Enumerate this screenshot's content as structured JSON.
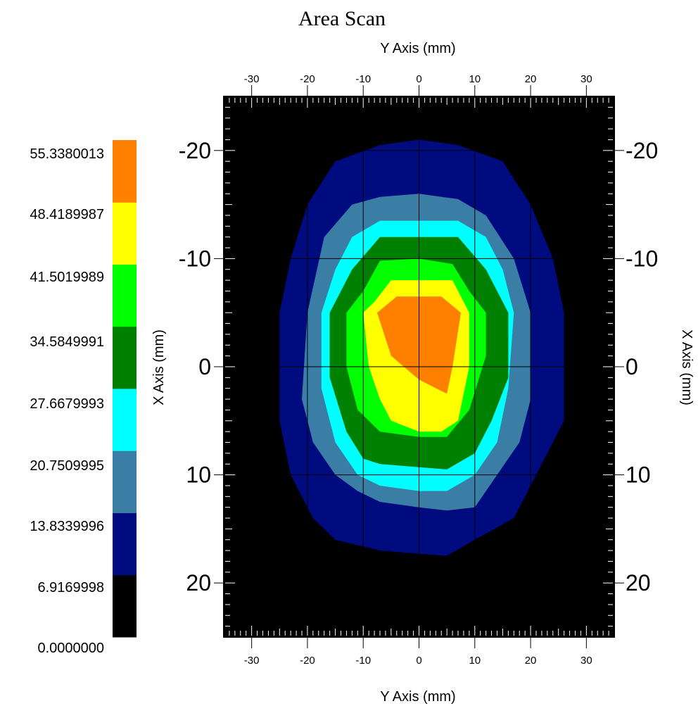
{
  "chart_data": {
    "type": "heatmap",
    "title": "Area Scan",
    "x_axis_label": "Y Axis (mm)",
    "y_axis_label": "X Axis (mm)",
    "x_range": [
      -35,
      35
    ],
    "y_range": [
      -25,
      25
    ],
    "y_reversed": true,
    "x_ticks": [
      -30,
      -20,
      -10,
      0,
      10,
      20,
      30
    ],
    "y_ticks": [
      -20,
      -10,
      0,
      10,
      20
    ],
    "x_tick_labels": [
      "-30",
      "-20",
      "-10",
      "0",
      "10",
      "20",
      "30"
    ],
    "y_tick_labels": [
      "-20",
      "-10",
      "0",
      "10",
      "20"
    ],
    "grid": true,
    "background_color": "#000000",
    "legend": {
      "placement": "left",
      "levels": [
        "0.0000000",
        "6.9169998",
        "13.8339996",
        "20.7509995",
        "27.6679993",
        "34.5849991",
        "41.5019989",
        "48.4189987",
        "55.3380013"
      ],
      "colors": [
        "#000000",
        "#000b80",
        "#3a7ea6",
        "#00ffff",
        "#008000",
        "#00ff00",
        "#ffff00",
        "#ff8000"
      ]
    },
    "contours": [
      {
        "level": "6.9169998",
        "color": "#000b80",
        "points": [
          [
            0,
            -21
          ],
          [
            -7,
            -20.5
          ],
          [
            -15,
            -19
          ],
          [
            -20,
            -15
          ],
          [
            -23,
            -10
          ],
          [
            -25,
            -5
          ],
          [
            -25,
            5
          ],
          [
            -23,
            10
          ],
          [
            -19,
            14
          ],
          [
            -15,
            16
          ],
          [
            -7,
            17
          ],
          [
            0,
            17.3
          ],
          [
            5,
            17.5
          ],
          [
            10,
            16
          ],
          [
            17,
            14
          ],
          [
            22,
            9
          ],
          [
            26,
            5
          ],
          [
            26,
            -5
          ],
          [
            24,
            -10
          ],
          [
            20,
            -15
          ],
          [
            15,
            -19
          ],
          [
            7,
            -20.5
          ]
        ]
      },
      {
        "level": "13.8339996",
        "color": "#3a7ea6",
        "points": [
          [
            0,
            -16
          ],
          [
            -7,
            -15.7
          ],
          [
            -12,
            -15
          ],
          [
            -17,
            -12
          ],
          [
            -20,
            -5
          ],
          [
            -21,
            3
          ],
          [
            -19,
            7
          ],
          [
            -15,
            10
          ],
          [
            -11,
            11.5
          ],
          [
            -7,
            12.5
          ],
          [
            0,
            13
          ],
          [
            5,
            13.3
          ],
          [
            10,
            13
          ],
          [
            14,
            10
          ],
          [
            18,
            7
          ],
          [
            20,
            3
          ],
          [
            20,
            -5
          ],
          [
            17,
            -10
          ],
          [
            12,
            -14
          ],
          [
            7,
            -15.5
          ]
        ]
      },
      {
        "level": "20.7509995",
        "color": "#00ffff",
        "points": [
          [
            0,
            -13.5
          ],
          [
            -7,
            -13.5
          ],
          [
            -12,
            -12
          ],
          [
            -15,
            -9
          ],
          [
            -17.5,
            -5
          ],
          [
            -17.5,
            2
          ],
          [
            -15,
            7
          ],
          [
            -11,
            10
          ],
          [
            -7,
            11
          ],
          [
            0,
            11.5
          ],
          [
            5,
            11.5
          ],
          [
            10,
            10
          ],
          [
            14,
            7
          ],
          [
            16,
            2
          ],
          [
            17,
            -5
          ],
          [
            15,
            -9
          ],
          [
            12,
            -12
          ],
          [
            7,
            -13.5
          ]
        ]
      },
      {
        "level": "27.6679993",
        "color": "#008000",
        "points": [
          [
            0,
            -12
          ],
          [
            -7,
            -12
          ],
          [
            -12,
            -9
          ],
          [
            -16,
            -5
          ],
          [
            -16,
            1
          ],
          [
            -13,
            6
          ],
          [
            -10,
            8.5
          ],
          [
            -7,
            9
          ],
          [
            0,
            9.3
          ],
          [
            5,
            9.5
          ],
          [
            10,
            8
          ],
          [
            13,
            5
          ],
          [
            16,
            1
          ],
          [
            16,
            -5
          ],
          [
            12,
            -9
          ],
          [
            7,
            -12
          ]
        ]
      },
      {
        "level": "34.5849991",
        "color": "#00ff00",
        "points": [
          [
            0,
            -10
          ],
          [
            -7,
            -9.8
          ],
          [
            -10,
            -7
          ],
          [
            -13,
            -5
          ],
          [
            -13,
            0
          ],
          [
            -11,
            4
          ],
          [
            -7,
            6
          ],
          [
            0,
            6.5
          ],
          [
            5,
            6.5
          ],
          [
            9,
            4
          ],
          [
            12,
            -1
          ],
          [
            12,
            -5
          ],
          [
            9,
            -7
          ],
          [
            6,
            -9.5
          ]
        ]
      },
      {
        "level": "41.5019989",
        "color": "#ffff00",
        "points": [
          [
            0,
            -8
          ],
          [
            -5,
            -8
          ],
          [
            -8,
            -6
          ],
          [
            -10,
            -5
          ],
          [
            -9,
            0
          ],
          [
            -7,
            3
          ],
          [
            -5,
            5
          ],
          [
            0,
            6
          ],
          [
            4,
            6
          ],
          [
            7,
            5
          ],
          [
            9,
            0
          ],
          [
            9,
            -5
          ],
          [
            8,
            -6
          ],
          [
            6,
            -8
          ]
        ]
      },
      {
        "level": "48.4189987",
        "color": "#ff8000",
        "points": [
          [
            -4,
            -6.5
          ],
          [
            4,
            -6.5
          ],
          [
            7.5,
            -5
          ],
          [
            6,
            0
          ],
          [
            5,
            2.5
          ],
          [
            0,
            1.2
          ],
          [
            -5,
            -1
          ],
          [
            -7.5,
            -5
          ]
        ]
      }
    ]
  }
}
